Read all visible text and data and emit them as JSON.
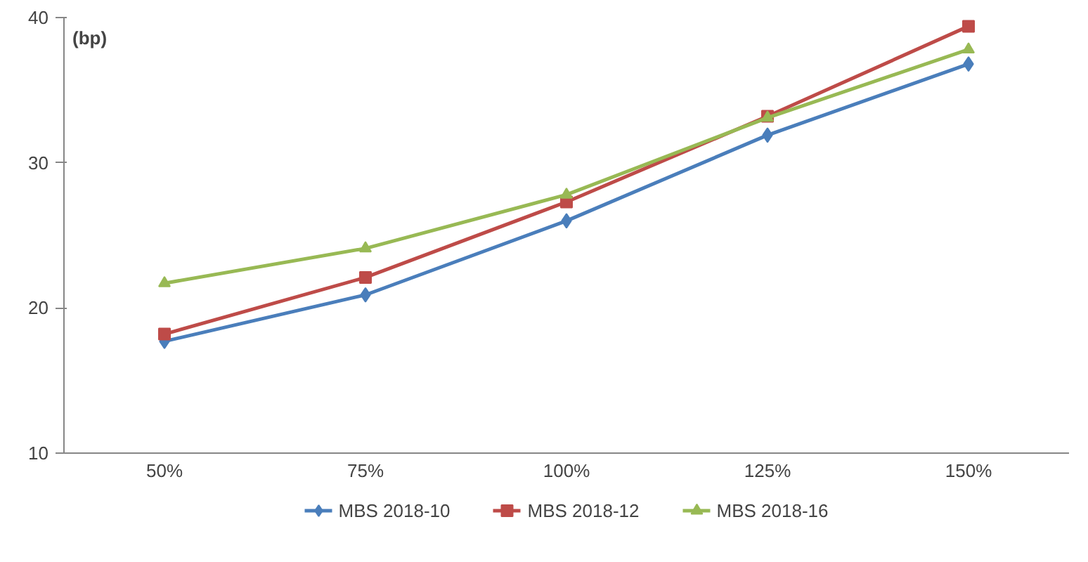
{
  "chart_data": {
    "type": "line",
    "ylabel": "(bp)",
    "categories": [
      "50%",
      "75%",
      "100%",
      "125%",
      "150%"
    ],
    "series": [
      {
        "name": "MBS 2018-10",
        "color": "#4a7ebb",
        "marker": "diamond",
        "values": [
          17.7,
          20.9,
          26.0,
          31.9,
          36.8
        ]
      },
      {
        "name": "MBS 2018-12",
        "color": "#be4b48",
        "marker": "square",
        "values": [
          18.2,
          22.1,
          27.3,
          33.2,
          39.4
        ]
      },
      {
        "name": "MBS 2018-16",
        "color": "#98b954",
        "marker": "triangle",
        "values": [
          21.7,
          24.1,
          27.8,
          33.1,
          37.8
        ]
      }
    ],
    "ylim": [
      10,
      40
    ],
    "yticks": [
      10,
      20,
      30,
      40
    ],
    "grid": false,
    "legend": "bottom",
    "line_style": "solid"
  }
}
